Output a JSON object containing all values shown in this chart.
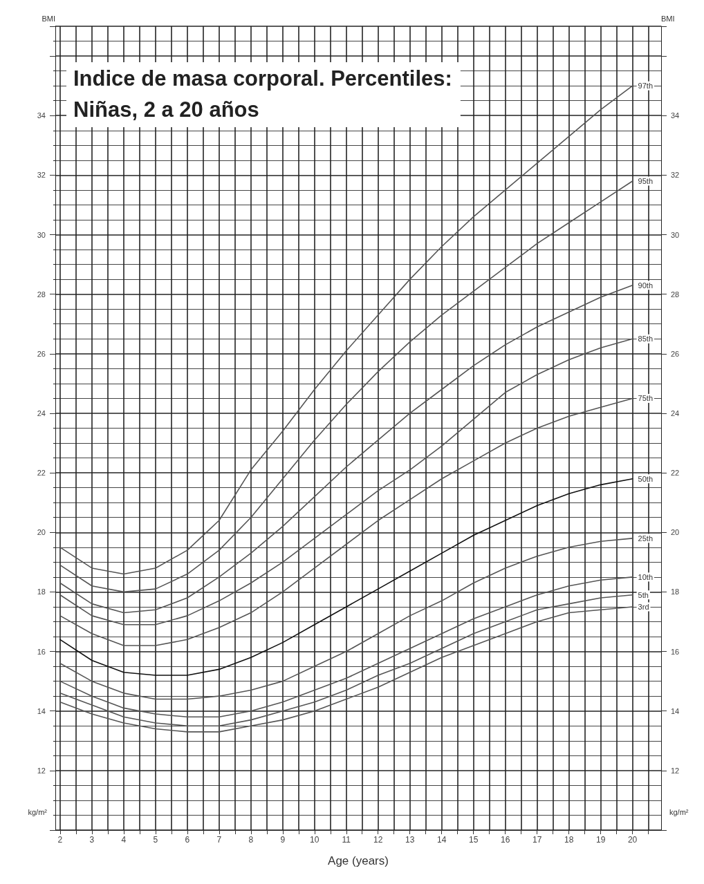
{
  "chart_data": {
    "type": "line",
    "title": "Indice de masa corporal. Percentiles:",
    "subtitle": "Niñas, 2 a 20 años",
    "xlabel": "Age (years)",
    "ylabel": "BMI",
    "y2label": "BMI",
    "annotations": [
      "kg/m²",
      "kg/m²"
    ],
    "x": [
      2,
      3,
      4,
      5,
      6,
      7,
      8,
      9,
      10,
      11,
      12,
      13,
      14,
      15,
      16,
      17,
      18,
      19,
      20
    ],
    "series": [
      {
        "name": "97th",
        "color": "#555555",
        "values": [
          19.5,
          18.8,
          18.6,
          18.8,
          19.4,
          20.4,
          22.1,
          23.4,
          24.8,
          26.1,
          27.3,
          28.5,
          29.6,
          30.6,
          31.5,
          32.4,
          33.3,
          34.2,
          35.0
        ]
      },
      {
        "name": "95th",
        "color": "#555555",
        "values": [
          18.9,
          18.2,
          18.0,
          18.1,
          18.6,
          19.4,
          20.5,
          21.8,
          23.1,
          24.3,
          25.4,
          26.4,
          27.3,
          28.1,
          28.9,
          29.7,
          30.4,
          31.1,
          31.8
        ]
      },
      {
        "name": "90th",
        "color": "#555555",
        "values": [
          18.3,
          17.6,
          17.3,
          17.4,
          17.8,
          18.5,
          19.3,
          20.2,
          21.2,
          22.2,
          23.1,
          24.0,
          24.8,
          25.6,
          26.3,
          26.9,
          27.4,
          27.9,
          28.3
        ]
      },
      {
        "name": "85th",
        "color": "#555555",
        "values": [
          17.9,
          17.2,
          16.9,
          16.9,
          17.2,
          17.7,
          18.3,
          19.0,
          19.8,
          20.6,
          21.4,
          22.1,
          22.9,
          23.8,
          24.7,
          25.3,
          25.8,
          26.2,
          26.5
        ]
      },
      {
        "name": "75th",
        "color": "#555555",
        "values": [
          17.2,
          16.6,
          16.2,
          16.2,
          16.4,
          16.8,
          17.3,
          18.0,
          18.8,
          19.6,
          20.4,
          21.1,
          21.8,
          22.4,
          23.0,
          23.5,
          23.9,
          24.2,
          24.5
        ]
      },
      {
        "name": "50th",
        "color": "#111111",
        "values": [
          16.4,
          15.7,
          15.3,
          15.2,
          15.2,
          15.4,
          15.8,
          16.3,
          16.9,
          17.5,
          18.1,
          18.7,
          19.3,
          19.9,
          20.4,
          20.9,
          21.3,
          21.6,
          21.8
        ]
      },
      {
        "name": "25th",
        "color": "#555555",
        "values": [
          15.6,
          15.0,
          14.6,
          14.4,
          14.4,
          14.5,
          14.7,
          15.0,
          15.5,
          16.0,
          16.6,
          17.2,
          17.7,
          18.3,
          18.8,
          19.2,
          19.5,
          19.7,
          19.8
        ]
      },
      {
        "name": "10th",
        "color": "#555555",
        "values": [
          15.0,
          14.5,
          14.1,
          13.9,
          13.8,
          13.8,
          14.0,
          14.3,
          14.7,
          15.1,
          15.6,
          16.1,
          16.6,
          17.1,
          17.5,
          17.9,
          18.2,
          18.4,
          18.5
        ]
      },
      {
        "name": "5th",
        "color": "#555555",
        "values": [
          14.6,
          14.2,
          13.8,
          13.6,
          13.5,
          13.5,
          13.7,
          14.0,
          14.3,
          14.7,
          15.2,
          15.6,
          16.1,
          16.6,
          17.0,
          17.4,
          17.6,
          17.8,
          17.9
        ]
      },
      {
        "name": "3rd",
        "color": "#555555",
        "values": [
          14.3,
          13.9,
          13.6,
          13.4,
          13.3,
          13.3,
          13.5,
          13.7,
          14.0,
          14.4,
          14.8,
          15.3,
          15.8,
          16.2,
          16.6,
          17.0,
          17.3,
          17.4,
          17.5
        ]
      }
    ],
    "xlim": [
      1.85,
      20.9
    ],
    "xticks": [
      2,
      {
        "value": 2.5,
        "label": null
      },
      3,
      {
        "value": 3.5,
        "label": null
      },
      4,
      {
        "value": 4.5,
        "label": null
      },
      5,
      {
        "value": 5.5,
        "label": null
      },
      6,
      {
        "value": 6.5,
        "label": null
      },
      7,
      {
        "value": 7.5,
        "label": null
      },
      8,
      {
        "value": 8.5,
        "label": null
      },
      9,
      {
        "value": 9.5,
        "label": null
      },
      10,
      {
        "value": 10.5,
        "label": null
      },
      11,
      {
        "value": 11.5,
        "label": null
      },
      12,
      {
        "value": 12.5,
        "label": null
      },
      13,
      {
        "value": 13.5,
        "label": null
      },
      14,
      {
        "value": 14.5,
        "label": null
      },
      15,
      {
        "value": 15.5,
        "label": null
      },
      16,
      {
        "value": 16.5,
        "label": null
      },
      17,
      {
        "value": 17.5,
        "label": null
      },
      18,
      {
        "value": 18.5,
        "label": null
      },
      19,
      {
        "value": 19.5,
        "label": null
      },
      20,
      {
        "value": 20.5,
        "label": null
      }
    ],
    "ylim": [
      10,
      37
    ],
    "yticks": [
      12,
      14,
      16,
      18,
      20,
      22,
      24,
      26,
      28,
      30,
      32,
      34
    ],
    "y2lim": [
      10,
      37
    ],
    "y2ticks": [
      12,
      14,
      16,
      18,
      20,
      22,
      24,
      26,
      28,
      30,
      32,
      34
    ],
    "grid": true,
    "legend": false,
    "marker": "none",
    "line_style": "solid"
  }
}
